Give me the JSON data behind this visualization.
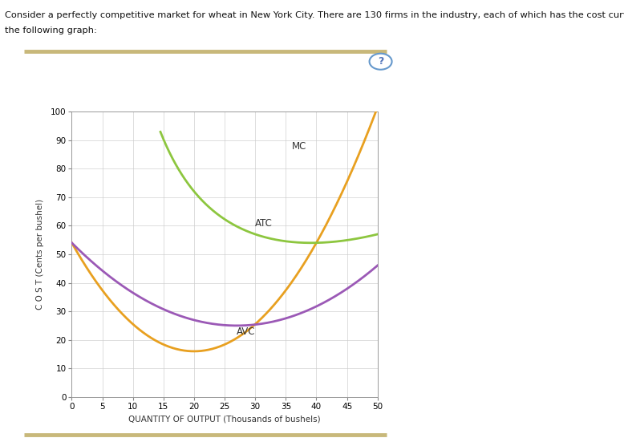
{
  "xlabel": "QUANTITY OF OUTPUT (Thousands of bushels)",
  "ylabel": "C O S T (Cents per bushel)",
  "xlim": [
    0,
    50
  ],
  "ylim": [
    0,
    100
  ],
  "xticks": [
    0,
    5,
    10,
    15,
    20,
    25,
    30,
    35,
    40,
    45,
    50
  ],
  "yticks": [
    0,
    10,
    20,
    30,
    40,
    50,
    60,
    70,
    80,
    90,
    100
  ],
  "mc_color": "#E8A020",
  "atc_color": "#8DC63F",
  "avc_color": "#9B59B6",
  "grid_color": "#CCCCCC",
  "header_line1": "Consider a perfectly competitive market for wheat in New York City. There are 130 firms in the industry, each of which has the cost curves shown on",
  "header_line2": "the following graph:",
  "mc_label": "MC",
  "atc_label": "ATC",
  "avc_label": "AVC",
  "line_width": 2.0,
  "golden_color": "#C8B87A",
  "outer_bg": "#FFFFFF",
  "panel_bg": "#FFFFFF",
  "panel_border": "#CCCCCC"
}
